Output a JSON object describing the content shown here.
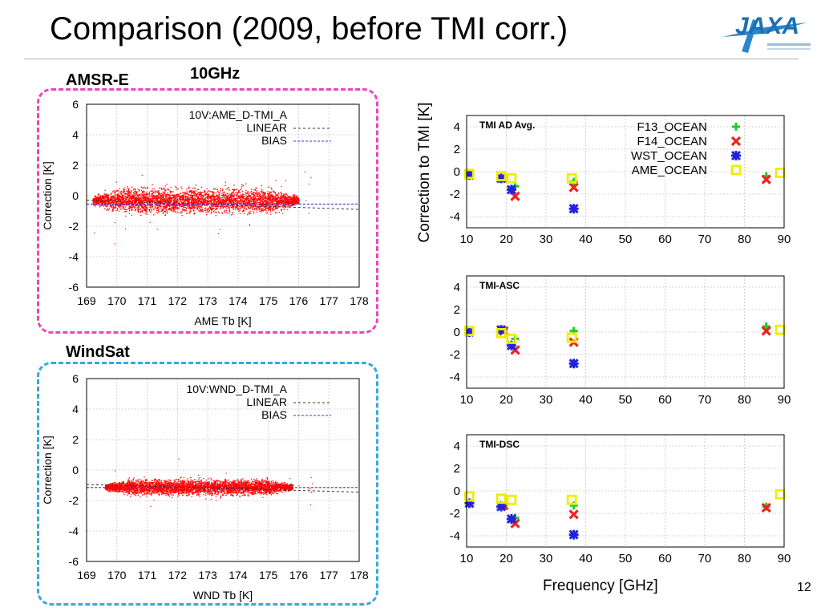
{
  "slide": {
    "title": "Comparison (2009, before TMI corr.)",
    "page_number": "12",
    "logo_text": "JAXA"
  },
  "labels": {
    "freq_label": "10GHz",
    "amsr_label": "AMSR-E",
    "windsat_label": "WindSat",
    "right_ylabel": "Correction to TMI  [K]",
    "right_xlabel": "Frequency [GHz]"
  },
  "colors": {
    "amsr_box": "#ee44bb",
    "windsat_box": "#33aadd",
    "scatter_points": "#ff0000",
    "bias_line": "#3333ff",
    "F13_OCEAN": "#22cc22",
    "F14_OCEAN": "#ee2222",
    "WST_OCEAN": "#2222dd",
    "AME_OCEAN": "#eeee00"
  },
  "chart_data": [
    {
      "id": "amsr",
      "type": "scatter",
      "legend": [
        "10V:AME_D-TMI_A",
        "LINEAR",
        "BIAS"
      ],
      "xlabel": "AME Tb [K]",
      "ylabel": "Correction [K]",
      "xlim": [
        169,
        178
      ],
      "ylim": [
        -6,
        6
      ],
      "xticks": [
        169,
        170,
        171,
        172,
        173,
        174,
        175,
        176,
        177,
        178
      ],
      "yticks": [
        -6,
        -4,
        -2,
        0,
        2,
        4,
        6
      ],
      "grid": true,
      "cloud": {
        "x_range": [
          169.2,
          176.0
        ],
        "center_y": -0.3,
        "spread": 0.7
      },
      "linear": {
        "from": [
          169,
          -0.3
        ],
        "to": [
          178,
          -0.9
        ]
      },
      "bias": -0.55
    },
    {
      "id": "windsat",
      "type": "scatter",
      "legend": [
        "10V:WND_D-TMI_A",
        "LINEAR",
        "BIAS"
      ],
      "xlabel": "WND Tb [K]",
      "ylabel": "Correction [K]",
      "xlim": [
        169,
        178
      ],
      "ylim": [
        -6,
        6
      ],
      "xticks": [
        169,
        170,
        171,
        172,
        173,
        174,
        175,
        176,
        177,
        178
      ],
      "yticks": [
        -6,
        -4,
        -2,
        0,
        2,
        4,
        6
      ],
      "grid": true,
      "cloud": {
        "x_range": [
          169.6,
          175.8
        ],
        "center_y": -1.1,
        "spread": 0.45
      },
      "linear": {
        "from": [
          169,
          -0.95
        ],
        "to": [
          178,
          -1.45
        ]
      },
      "bias": -1.15
    },
    {
      "id": "ad",
      "type": "scatter",
      "annotation": "TMI AD Avg.",
      "xlim": [
        10,
        90
      ],
      "ylim": [
        -5,
        5
      ],
      "xticks": [
        10,
        20,
        30,
        40,
        50,
        60,
        70,
        80,
        90
      ],
      "yticks": [
        -4,
        -2,
        0,
        2,
        4
      ],
      "grid": true,
      "legend": [
        "F13_OCEAN",
        "F14_OCEAN",
        "WST_OCEAN",
        "AME_OCEAN"
      ],
      "series": [
        {
          "name": "F13_OCEAN",
          "marker": "plus",
          "points": [
            [
              19.35,
              -0.6
            ],
            [
              22.235,
              -1.3
            ],
            [
              37,
              -0.9
            ],
            [
              85.5,
              -0.4
            ]
          ]
        },
        {
          "name": "F14_OCEAN",
          "marker": "cross",
          "points": [
            [
              19.35,
              -0.6
            ],
            [
              22.235,
              -2.2
            ],
            [
              37,
              -1.4
            ],
            [
              85.5,
              -0.7
            ]
          ]
        },
        {
          "name": "WST_OCEAN",
          "marker": "star",
          "points": [
            [
              10.7,
              -0.3
            ],
            [
              18.7,
              -0.6
            ],
            [
              21.3,
              -1.6
            ],
            [
              37,
              -3.3
            ]
          ]
        },
        {
          "name": "AME_OCEAN",
          "marker": "square",
          "points": [
            [
              10.65,
              -0.2
            ],
            [
              18.7,
              -0.4
            ],
            [
              21.3,
              -0.6
            ],
            [
              36.5,
              -0.6
            ],
            [
              89,
              -0.1
            ]
          ]
        }
      ]
    },
    {
      "id": "asc",
      "type": "scatter",
      "annotation": "TMI-ASC",
      "xlim": [
        10,
        90
      ],
      "ylim": [
        -5,
        5
      ],
      "xticks": [
        10,
        20,
        30,
        40,
        50,
        60,
        70,
        80,
        90
      ],
      "yticks": [
        -4,
        -2,
        0,
        2,
        4
      ],
      "grid": true,
      "series": [
        {
          "name": "F13_OCEAN",
          "marker": "plus",
          "points": [
            [
              19.35,
              0.2
            ],
            [
              22.235,
              -0.6
            ],
            [
              37,
              0.1
            ],
            [
              85.5,
              0.5
            ]
          ]
        },
        {
          "name": "F14_OCEAN",
          "marker": "cross",
          "points": [
            [
              19.35,
              0.1
            ],
            [
              22.235,
              -1.6
            ],
            [
              37,
              -0.9
            ],
            [
              85.5,
              0.1
            ]
          ]
        },
        {
          "name": "WST_OCEAN",
          "marker": "star",
          "points": [
            [
              10.7,
              0.0
            ],
            [
              18.7,
              0.2
            ],
            [
              21.3,
              -1.2
            ],
            [
              37,
              -2.8
            ]
          ]
        },
        {
          "name": "AME_OCEAN",
          "marker": "square",
          "points": [
            [
              10.65,
              0.1
            ],
            [
              18.7,
              -0.1
            ],
            [
              21.3,
              -0.6
            ],
            [
              36.5,
              -0.5
            ],
            [
              89,
              0.2
            ]
          ]
        }
      ]
    },
    {
      "id": "dsc",
      "type": "scatter",
      "annotation": "TMI-DSC",
      "xlim": [
        10,
        90
      ],
      "ylim": [
        -5,
        5
      ],
      "xticks": [
        10,
        20,
        30,
        40,
        50,
        60,
        70,
        80,
        90
      ],
      "yticks": [
        -4,
        -2,
        0,
        2,
        4
      ],
      "grid": true,
      "series": [
        {
          "name": "F13_OCEAN",
          "marker": "plus",
          "points": [
            [
              19.35,
              -1.3
            ],
            [
              22.235,
              -2.4
            ],
            [
              37,
              -1.3
            ],
            [
              85.5,
              -1.4
            ]
          ]
        },
        {
          "name": "F14_OCEAN",
          "marker": "cross",
          "points": [
            [
              19.35,
              -1.3
            ],
            [
              22.235,
              -2.9
            ],
            [
              37,
              -2.1
            ],
            [
              85.5,
              -1.5
            ]
          ]
        },
        {
          "name": "WST_OCEAN",
          "marker": "star",
          "points": [
            [
              10.7,
              -1.1
            ],
            [
              18.7,
              -1.4
            ],
            [
              21.3,
              -2.5
            ],
            [
              37,
              -3.9
            ]
          ]
        },
        {
          "name": "AME_OCEAN",
          "marker": "square",
          "points": [
            [
              10.65,
              -0.5
            ],
            [
              18.7,
              -0.7
            ],
            [
              21.3,
              -0.8
            ],
            [
              36.5,
              -0.8
            ],
            [
              89,
              -0.3
            ]
          ]
        }
      ]
    }
  ]
}
